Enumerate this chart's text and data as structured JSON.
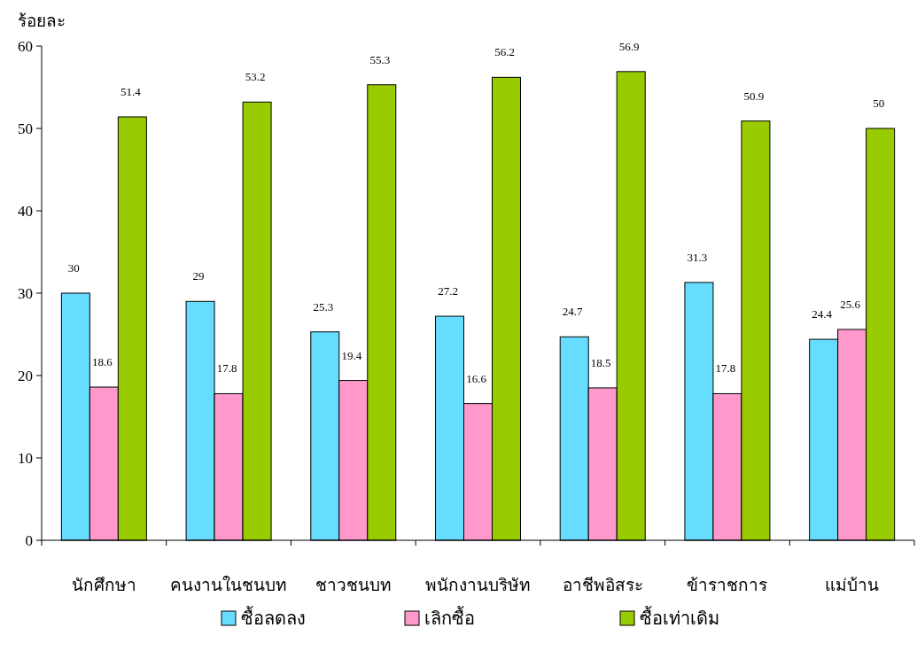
{
  "chart_data": {
    "type": "bar",
    "ylabel": "ร้อยละ",
    "categories": [
      "นักศึกษา",
      "คนงานในชนบท",
      "ชาวชนบท",
      "พนักงานบริษัท",
      "อาชีพอิสระ",
      "ข้าราชการ",
      "แม่บ้าน"
    ],
    "series": [
      {
        "name": "ซื้อลดลง",
        "color": "#66ddff",
        "values": [
          30,
          29,
          25.3,
          27.2,
          24.7,
          31.3,
          24.4
        ]
      },
      {
        "name": "เลิกซื้อ",
        "color": "#ff99cc",
        "values": [
          18.6,
          17.8,
          19.4,
          16.6,
          18.5,
          17.8,
          25.6
        ]
      },
      {
        "name": "ซื้อเท่าเดิม",
        "color": "#99cc00",
        "values": [
          51.4,
          53.2,
          55.3,
          56.2,
          56.9,
          50.9,
          50
        ]
      }
    ],
    "ylim": [
      0,
      60
    ],
    "yticks": [
      0,
      10,
      20,
      30,
      40,
      50,
      60
    ],
    "grid": false,
    "legend": "bottom",
    "data_labels": true
  }
}
